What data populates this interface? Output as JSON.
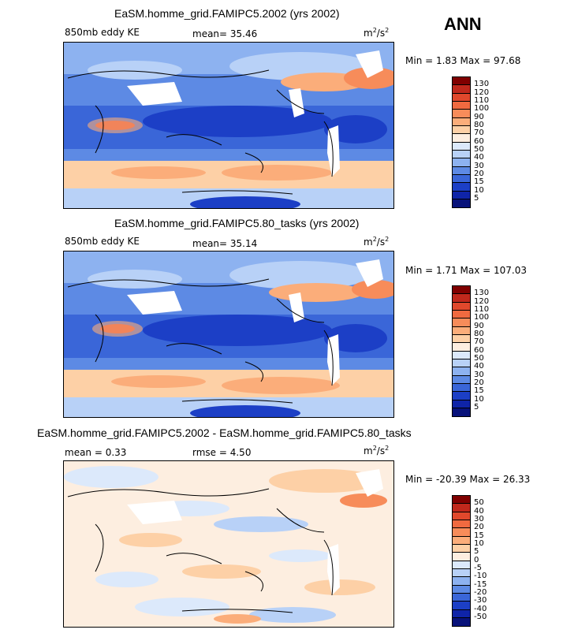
{
  "season": "ANN",
  "panels": [
    {
      "title": "EaSM.homme_grid.FAMIPC5.2002 (yrs 2002)",
      "left_label": "850mb eddy KE",
      "stat1": "mean=  35.46",
      "stat2": "",
      "units": "m",
      "units_sup1": "2",
      "units_mid": "/s",
      "units_sup2": "2",
      "minmax": "Min =   1.83 Max =  97.68",
      "colorbar": {
        "ticks": [
          "130",
          "120",
          "110",
          "100",
          "90",
          "80",
          "70",
          "60",
          "50",
          "40",
          "30",
          "20",
          "15",
          "10",
          "5"
        ],
        "colors": [
          "#800000",
          "#c0281c",
          "#e0482c",
          "#f06a40",
          "#f78c5a",
          "#fbad7a",
          "#fdd0a6",
          "#fdeee0",
          "#dce9fb",
          "#b8d1f7",
          "#8db2f0",
          "#5d8ae4",
          "#3a66d8",
          "#1c3fc6",
          "#0f24a8",
          "#08127a"
        ]
      }
    },
    {
      "title": "EaSM.homme_grid.FAMIPC5.80_tasks (yrs 2002)",
      "left_label": "850mb eddy KE",
      "stat1": "mean=  35.14",
      "stat2": "",
      "units": "m",
      "units_sup1": "2",
      "units_mid": "/s",
      "units_sup2": "2",
      "minmax": "Min =   1.71 Max = 107.03",
      "colorbar": {
        "ticks": [
          "130",
          "120",
          "110",
          "100",
          "90",
          "80",
          "70",
          "60",
          "50",
          "40",
          "30",
          "20",
          "15",
          "10",
          "5"
        ],
        "colors": [
          "#800000",
          "#c0281c",
          "#e0482c",
          "#f06a40",
          "#f78c5a",
          "#fbad7a",
          "#fdd0a6",
          "#fdeee0",
          "#dce9fb",
          "#b8d1f7",
          "#8db2f0",
          "#5d8ae4",
          "#3a66d8",
          "#1c3fc6",
          "#0f24a8",
          "#08127a"
        ]
      }
    },
    {
      "title": "EaSM.homme_grid.FAMIPC5.2002 - EaSM.homme_grid.FAMIPC5.80_tasks",
      "left_label": "mean =   0.33",
      "stat1": "rmse =   4.50",
      "stat2": "",
      "units": "m",
      "units_sup1": "2",
      "units_mid": "/s",
      "units_sup2": "2",
      "minmax": "Min = -20.39 Max =  26.33",
      "colorbar": {
        "ticks": [
          "50",
          "40",
          "30",
          "20",
          "15",
          "10",
          "5",
          "0",
          "-5",
          "-10",
          "-15",
          "-20",
          "-30",
          "-40",
          "-50"
        ],
        "colors": [
          "#800000",
          "#c0281c",
          "#e0482c",
          "#f06a40",
          "#f78c5a",
          "#fbad7a",
          "#fdd0a6",
          "#fdeee0",
          "#dce9fb",
          "#b8d1f7",
          "#8db2f0",
          "#5d8ae4",
          "#3a66d8",
          "#1c3fc6",
          "#0f24a8",
          "#08127a"
        ]
      }
    }
  ]
}
